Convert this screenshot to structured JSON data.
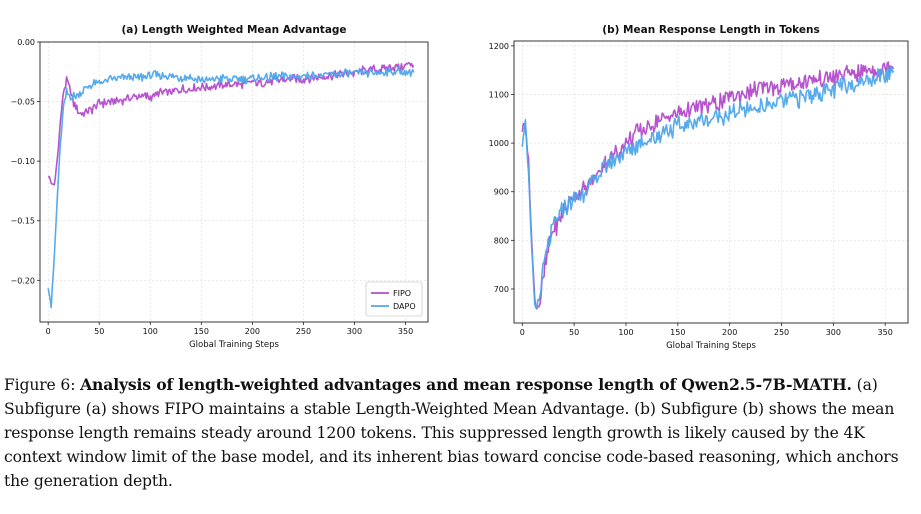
{
  "chart_data": [
    {
      "type": "line",
      "title": "(a) Length Weighted Mean Advantage",
      "xlabel": "Global Training Steps",
      "ylabel": "",
      "xlim": [
        -8,
        372
      ],
      "ylim": [
        -0.235,
        0.0
      ],
      "xticks": [
        0,
        50,
        100,
        150,
        200,
        250,
        300,
        350
      ],
      "yticks": [
        0.0,
        -0.05,
        -0.1,
        -0.15,
        -0.2
      ],
      "ytick_labels": [
        "0.00",
        "−0.05",
        "−0.10",
        "−0.15",
        "−0.20"
      ],
      "grid": true,
      "legend_position": "bottom-right",
      "series": [
        {
          "name": "FIPO",
          "color": "#b24bcc",
          "points": [
            [
              0,
              -0.112
            ],
            [
              3,
              -0.118
            ],
            [
              6,
              -0.121
            ],
            [
              9,
              -0.098
            ],
            [
              12,
              -0.066
            ],
            [
              15,
              -0.042
            ],
            [
              18,
              -0.032
            ],
            [
              21,
              -0.038
            ],
            [
              25,
              -0.052
            ],
            [
              30,
              -0.06
            ],
            [
              40,
              -0.058
            ],
            [
              50,
              -0.052
            ],
            [
              60,
              -0.05
            ],
            [
              70,
              -0.049
            ],
            [
              80,
              -0.047
            ],
            [
              90,
              -0.045
            ],
            [
              100,
              -0.046
            ],
            [
              110,
              -0.043
            ],
            [
              120,
              -0.042
            ],
            [
              130,
              -0.04
            ],
            [
              140,
              -0.039
            ],
            [
              150,
              -0.038
            ],
            [
              160,
              -0.037
            ],
            [
              170,
              -0.036
            ],
            [
              180,
              -0.035
            ],
            [
              190,
              -0.035
            ],
            [
              200,
              -0.034
            ],
            [
              210,
              -0.034
            ],
            [
              220,
              -0.033
            ],
            [
              230,
              -0.032
            ],
            [
              240,
              -0.031
            ],
            [
              250,
              -0.031
            ],
            [
              260,
              -0.03
            ],
            [
              270,
              -0.029
            ],
            [
              280,
              -0.028
            ],
            [
              290,
              -0.027
            ],
            [
              300,
              -0.026
            ],
            [
              310,
              -0.024
            ],
            [
              320,
              -0.023
            ],
            [
              330,
              -0.022
            ],
            [
              340,
              -0.021
            ],
            [
              350,
              -0.02
            ],
            [
              358,
              -0.018
            ]
          ]
        },
        {
          "name": "DAPO",
          "color": "#4ea6ea",
          "points": [
            [
              0,
              -0.205
            ],
            [
              3,
              -0.222
            ],
            [
              6,
              -0.18
            ],
            [
              9,
              -0.13
            ],
            [
              12,
              -0.085
            ],
            [
              15,
              -0.055
            ],
            [
              18,
              -0.042
            ],
            [
              22,
              -0.046
            ],
            [
              28,
              -0.045
            ],
            [
              35,
              -0.04
            ],
            [
              45,
              -0.035
            ],
            [
              55,
              -0.033
            ],
            [
              65,
              -0.031
            ],
            [
              75,
              -0.03
            ],
            [
              85,
              -0.03
            ],
            [
              95,
              -0.029
            ],
            [
              105,
              -0.028
            ],
            [
              115,
              -0.029
            ],
            [
              125,
              -0.029
            ],
            [
              135,
              -0.03
            ],
            [
              145,
              -0.031
            ],
            [
              155,
              -0.032
            ],
            [
              165,
              -0.031
            ],
            [
              175,
              -0.031
            ],
            [
              185,
              -0.031
            ],
            [
              195,
              -0.031
            ],
            [
              205,
              -0.03
            ],
            [
              215,
              -0.03
            ],
            [
              225,
              -0.029
            ],
            [
              235,
              -0.029
            ],
            [
              245,
              -0.029
            ],
            [
              255,
              -0.028
            ],
            [
              265,
              -0.028
            ],
            [
              275,
              -0.028
            ],
            [
              285,
              -0.027
            ],
            [
              295,
              -0.026
            ],
            [
              305,
              -0.026
            ],
            [
              315,
              -0.026
            ],
            [
              325,
              -0.025
            ],
            [
              335,
              -0.025
            ],
            [
              345,
              -0.025
            ],
            [
              358,
              -0.025
            ]
          ]
        }
      ]
    },
    {
      "type": "line",
      "title": "(b) Mean Response Length in Tokens",
      "xlabel": "Global Training Steps",
      "ylabel": "",
      "xlim": [
        -8,
        372
      ],
      "ylim": [
        630,
        1210
      ],
      "xticks": [
        0,
        50,
        100,
        150,
        200,
        250,
        300,
        350
      ],
      "yticks": [
        700,
        800,
        900,
        1000,
        1100,
        1200
      ],
      "ytick_labels": [
        "700",
        "800",
        "900",
        "1000",
        "1100",
        "1200"
      ],
      "grid": true,
      "legend_position": "",
      "series": [
        {
          "name": "FIPO",
          "color": "#b24bcc",
          "points": [
            [
              0,
              1030
            ],
            [
              3,
              1040
            ],
            [
              6,
              960
            ],
            [
              9,
              800
            ],
            [
              12,
              680
            ],
            [
              14,
              660
            ],
            [
              17,
              675
            ],
            [
              20,
              720
            ],
            [
              25,
              780
            ],
            [
              30,
              820
            ],
            [
              40,
              860
            ],
            [
              50,
              890
            ],
            [
              60,
              905
            ],
            [
              70,
              930
            ],
            [
              80,
              960
            ],
            [
              90,
              980
            ],
            [
              100,
              1000
            ],
            [
              110,
              1020
            ],
            [
              120,
              1030
            ],
            [
              130,
              1045
            ],
            [
              140,
              1055
            ],
            [
              150,
              1060
            ],
            [
              160,
              1070
            ],
            [
              170,
              1075
            ],
            [
              180,
              1080
            ],
            [
              190,
              1085
            ],
            [
              200,
              1095
            ],
            [
              210,
              1100
            ],
            [
              220,
              1105
            ],
            [
              230,
              1110
            ],
            [
              240,
              1115
            ],
            [
              250,
              1120
            ],
            [
              260,
              1120
            ],
            [
              270,
              1125
            ],
            [
              280,
              1130
            ],
            [
              290,
              1130
            ],
            [
              300,
              1135
            ],
            [
              310,
              1140
            ],
            [
              320,
              1145
            ],
            [
              330,
              1150
            ],
            [
              340,
              1150
            ],
            [
              350,
              1155
            ],
            [
              358,
              1165
            ]
          ]
        },
        {
          "name": "DAPO",
          "color": "#4ea6ea",
          "points": [
            [
              0,
              1000
            ],
            [
              3,
              1045
            ],
            [
              6,
              940
            ],
            [
              9,
              780
            ],
            [
              12,
              665
            ],
            [
              14,
              660
            ],
            [
              17,
              690
            ],
            [
              20,
              740
            ],
            [
              25,
              790
            ],
            [
              30,
              830
            ],
            [
              40,
              865
            ],
            [
              50,
              885
            ],
            [
              60,
              900
            ],
            [
              70,
              925
            ],
            [
              80,
              950
            ],
            [
              90,
              970
            ],
            [
              100,
              980
            ],
            [
              110,
              995
            ],
            [
              120,
              1005
            ],
            [
              130,
              1015
            ],
            [
              140,
              1025
            ],
            [
              150,
              1035
            ],
            [
              160,
              1040
            ],
            [
              170,
              1045
            ],
            [
              180,
              1050
            ],
            [
              190,
              1055
            ],
            [
              200,
              1060
            ],
            [
              210,
              1065
            ],
            [
              220,
              1070
            ],
            [
              230,
              1075
            ],
            [
              240,
              1080
            ],
            [
              250,
              1085
            ],
            [
              260,
              1090
            ],
            [
              270,
              1095
            ],
            [
              280,
              1100
            ],
            [
              290,
              1105
            ],
            [
              300,
              1110
            ],
            [
              310,
              1120
            ],
            [
              320,
              1125
            ],
            [
              330,
              1130
            ],
            [
              340,
              1135
            ],
            [
              350,
              1140
            ],
            [
              358,
              1150
            ]
          ]
        }
      ]
    }
  ],
  "caption": {
    "label": "Figure 6:",
    "bold_text": "Analysis of length-weighted advantages and mean response length of Qwen2.5-7B-MATH.",
    "body": "(a) Subfigure (a) shows FIPO maintains a stable Length-Weighted Mean Advantage. (b) Subfigure (b) shows the mean response length remains steady around 1200 tokens. This suppressed length growth is likely caused by the 4K context window limit of the base model, and its inherent bias toward concise code-based reasoning, which anchors the generation depth."
  }
}
